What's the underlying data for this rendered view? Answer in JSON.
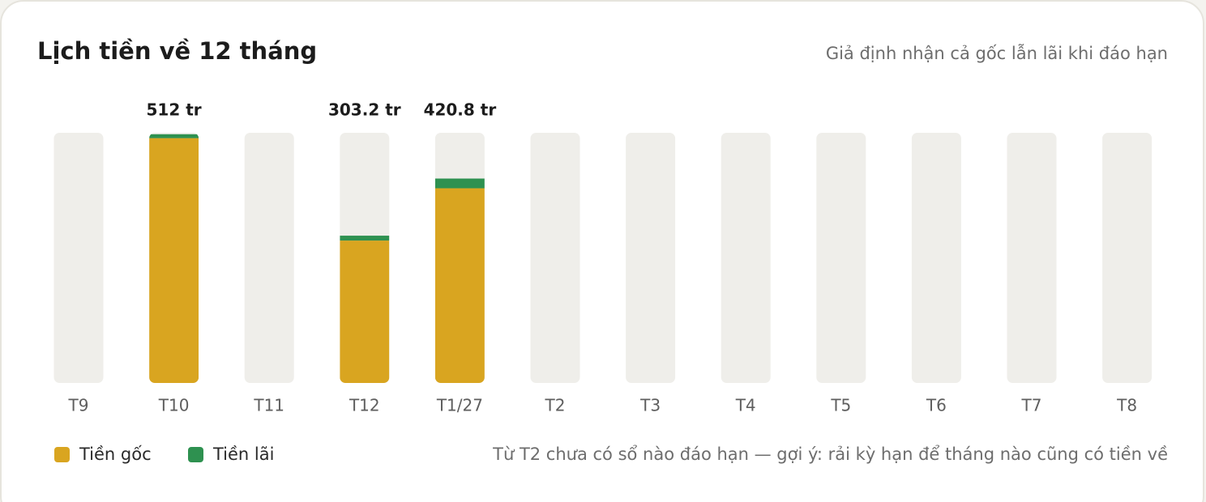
{
  "chart_data": {
    "type": "stacked_bar",
    "title": "Lịch tiền về 12 tháng",
    "subtitle": "Giả định nhận cả gốc lẫn lãi khi đáo hạn",
    "categories": [
      "T9",
      "T10",
      "T11",
      "T12",
      "T1/27",
      "T2",
      "T3",
      "T4",
      "T5",
      "T6",
      "T7",
      "T8"
    ],
    "series": [
      {
        "name": "Tiền gốc",
        "color": "#d9a520",
        "values": [
          null,
          504,
          null,
          293.2,
          400.8,
          null,
          null,
          null,
          null,
          null,
          null,
          null
        ]
      },
      {
        "name": "Tiền lãi",
        "color": "#2e9150",
        "values": [
          null,
          8,
          null,
          10,
          20,
          null,
          null,
          null,
          null,
          null,
          null,
          null
        ]
      }
    ],
    "totals": [
      null,
      512,
      null,
      303.2,
      420.8,
      null,
      null,
      null,
      null,
      null,
      null,
      null
    ],
    "value_labels": [
      null,
      "512 tr",
      null,
      "303.2 tr",
      "420.8 tr",
      null,
      null,
      null,
      null,
      null,
      null,
      null
    ],
    "ylim": [
      0,
      515
    ],
    "note": "Từ T2 chưa có sổ nào đáo hạn — gợi ý: rải kỳ hạn để tháng nào cũng có tiền về"
  }
}
